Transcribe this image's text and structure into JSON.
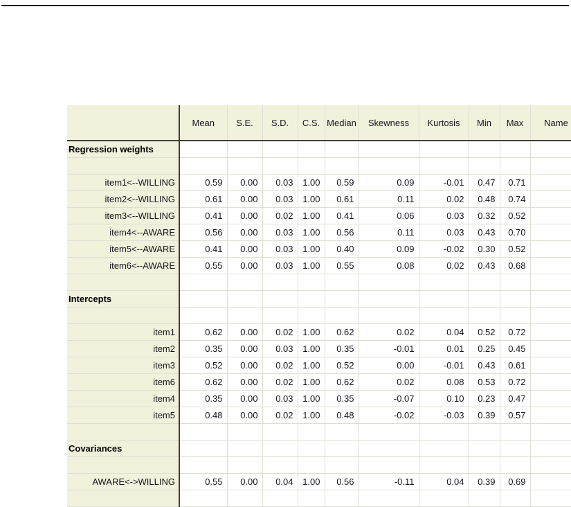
{
  "colors": {
    "header_bg": "#f2f1dc",
    "grid_line": "#dedfd3",
    "dark_line": "#3f3f3f",
    "text": "#15151e",
    "top_rule": "#000000"
  },
  "table": {
    "columns": [
      "",
      "Mean",
      "S.E.",
      "S.D.",
      "C.S.",
      "Median",
      "Skewness",
      "Kurtosis",
      "Min",
      "Max",
      "Name"
    ],
    "column_keys": [
      "mean",
      "se",
      "sd",
      "cs",
      "median",
      "skewness",
      "kurtosis",
      "min",
      "max",
      "name"
    ],
    "rows": [
      {
        "type": "section",
        "label": "Regression weights"
      },
      {
        "type": "empty"
      },
      {
        "type": "data",
        "label": "item1<--WILLING",
        "values": [
          "0.59",
          "0.00",
          "0.03",
          "1.00",
          "0.59",
          "0.09",
          "-0.01",
          "0.47",
          "0.71",
          ""
        ]
      },
      {
        "type": "data",
        "label": "item2<--WILLING",
        "values": [
          "0.61",
          "0.00",
          "0.03",
          "1.00",
          "0.61",
          "0.11",
          "0.02",
          "0.48",
          "0.74",
          ""
        ]
      },
      {
        "type": "data",
        "label": "item3<--WILLING",
        "values": [
          "0.41",
          "0.00",
          "0.02",
          "1.00",
          "0.41",
          "0.06",
          "0.03",
          "0.32",
          "0.52",
          ""
        ]
      },
      {
        "type": "data",
        "label": "item4<--AWARE",
        "values": [
          "0.56",
          "0.00",
          "0.03",
          "1.00",
          "0.56",
          "0.11",
          "0.03",
          "0.43",
          "0.70",
          ""
        ]
      },
      {
        "type": "data",
        "label": "item5<--AWARE",
        "values": [
          "0.41",
          "0.00",
          "0.03",
          "1.00",
          "0.40",
          "0.09",
          "-0.02",
          "0.30",
          "0.52",
          ""
        ]
      },
      {
        "type": "data",
        "label": "item6<--AWARE",
        "values": [
          "0.55",
          "0.00",
          "0.03",
          "1.00",
          "0.55",
          "0.08",
          "0.02",
          "0.43",
          "0.68",
          ""
        ]
      },
      {
        "type": "empty"
      },
      {
        "type": "section",
        "label": "Intercepts"
      },
      {
        "type": "empty"
      },
      {
        "type": "data",
        "label": "item1",
        "values": [
          "0.62",
          "0.00",
          "0.02",
          "1.00",
          "0.62",
          "0.02",
          "0.04",
          "0.52",
          "0.72",
          ""
        ]
      },
      {
        "type": "data",
        "label": "item2",
        "values": [
          "0.35",
          "0.00",
          "0.03",
          "1.00",
          "0.35",
          "-0.01",
          "0.01",
          "0.25",
          "0.45",
          ""
        ]
      },
      {
        "type": "data",
        "label": "item3",
        "values": [
          "0.52",
          "0.00",
          "0.02",
          "1.00",
          "0.52",
          "0.00",
          "-0.01",
          "0.43",
          "0.61",
          ""
        ]
      },
      {
        "type": "data",
        "label": "item6",
        "values": [
          "0.62",
          "0.00",
          "0.02",
          "1.00",
          "0.62",
          "0.02",
          "0.08",
          "0.53",
          "0.72",
          ""
        ]
      },
      {
        "type": "data",
        "label": "item4",
        "values": [
          "0.35",
          "0.00",
          "0.03",
          "1.00",
          "0.35",
          "-0.07",
          "0.10",
          "0.23",
          "0.47",
          ""
        ]
      },
      {
        "type": "data",
        "label": "item5",
        "values": [
          "0.48",
          "0.00",
          "0.02",
          "1.00",
          "0.48",
          "-0.02",
          "-0.03",
          "0.39",
          "0.57",
          ""
        ]
      },
      {
        "type": "empty"
      },
      {
        "type": "section",
        "label": "Covariances"
      },
      {
        "type": "empty"
      },
      {
        "type": "data",
        "label": "AWARE<->WILLING",
        "values": [
          "0.55",
          "0.00",
          "0.04",
          "1.00",
          "0.56",
          "-0.11",
          "0.04",
          "0.39",
          "0.69",
          ""
        ]
      },
      {
        "type": "empty"
      }
    ]
  }
}
